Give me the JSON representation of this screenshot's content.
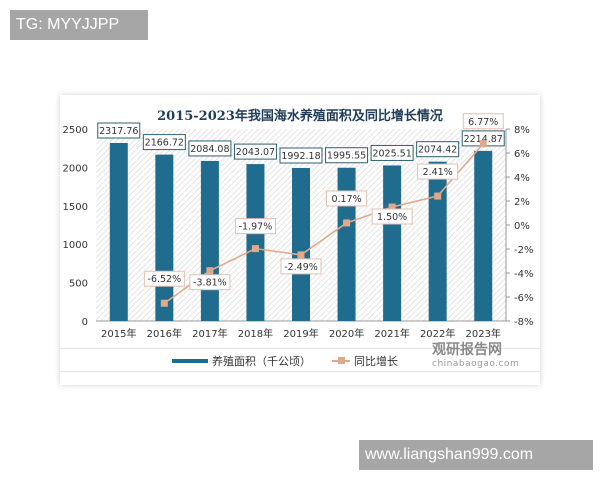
{
  "watermarks": {
    "top_left": "TG: MYYJJPP",
    "bottom_right": "www.liangshan999.com"
  },
  "chart_data": {
    "type": "bar+line",
    "title": "2015-2023年我国海水养殖面积及同比增长情况",
    "categories": [
      "2015年",
      "2016年",
      "2017年",
      "2018年",
      "2019年",
      "2020年",
      "2021年",
      "2022年",
      "2023年"
    ],
    "series": [
      {
        "name": "养殖面积（千公顷）",
        "type": "bar",
        "axis": "left",
        "color": "#1f6c8f",
        "values": [
          2317.76,
          2166.72,
          2084.08,
          2043.07,
          1992.18,
          1995.55,
          2025.51,
          2074.42,
          2214.87
        ],
        "labels": [
          "2317.76",
          "2166.72",
          "2084.08",
          "2043.07",
          "1992.18",
          "1995.55",
          "2025.51",
          "2074.42",
          "2214.87"
        ]
      },
      {
        "name": "同比增长",
        "type": "line",
        "axis": "right",
        "color": "#e0a98a",
        "values": [
          null,
          -6.52,
          -3.81,
          -1.97,
          -2.49,
          0.17,
          1.5,
          2.41,
          6.77
        ],
        "labels": [
          "",
          "-6.52%",
          "-3.81%",
          "-1.97%",
          "-2.49%",
          "0.17%",
          "1.50%",
          "2.41%",
          "6.77%"
        ]
      }
    ],
    "left_axis": {
      "ticks": [
        "0",
        "500",
        "1000",
        "1500",
        "2000",
        "2500"
      ],
      "ylim": [
        0,
        2500
      ]
    },
    "right_axis": {
      "ticks": [
        "-8%",
        "-6%",
        "-4%",
        "-2%",
        "0%",
        "2%",
        "4%",
        "6%",
        "8%"
      ],
      "ylim": [
        -8,
        8
      ]
    },
    "legend": {
      "position": "bottom",
      "items": [
        "养殖面积（千公顷）",
        "同比增长"
      ]
    },
    "grid": false
  },
  "brand": {
    "name": "观研报告网",
    "url": "chinabaogao.com"
  }
}
